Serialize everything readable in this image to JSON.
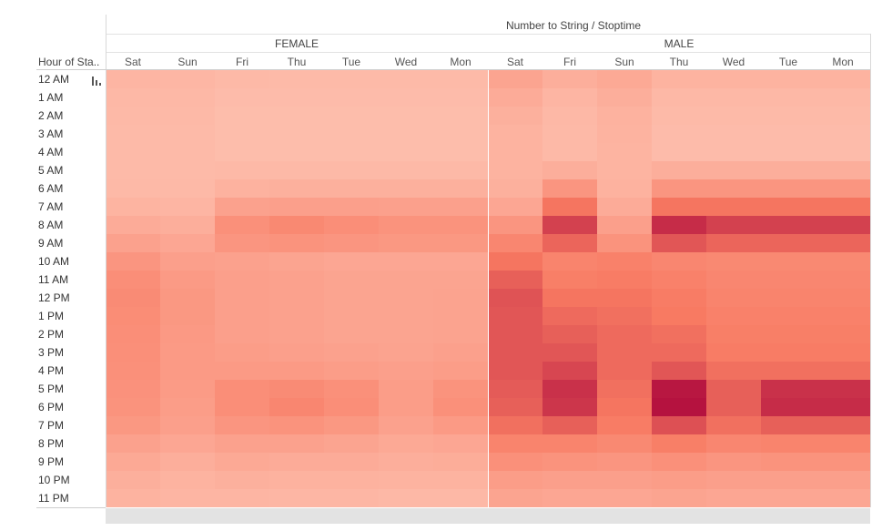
{
  "chart_data": {
    "type": "heatmap",
    "title": "Number to String / Stoptime",
    "row_header": "Hour of Sta..",
    "rows": [
      "12 AM",
      "1 AM",
      "2 AM",
      "3 AM",
      "4 AM",
      "5 AM",
      "6 AM",
      "7 AM",
      "8 AM",
      "9 AM",
      "10 AM",
      "11 AM",
      "12 PM",
      "1 PM",
      "2 PM",
      "3 PM",
      "4 PM",
      "5 PM",
      "6 PM",
      "7 PM",
      "8 PM",
      "9 PM",
      "10 PM",
      "11 PM"
    ],
    "groups": [
      {
        "name": "FEMALE",
        "columns": [
          "Sat",
          "Sun",
          "Fri",
          "Thu",
          "Tue",
          "Wed",
          "Mon"
        ],
        "values": [
          [
            12,
            11,
            9,
            8,
            8,
            8,
            8
          ],
          [
            10,
            10,
            7,
            7,
            7,
            7,
            7
          ],
          [
            9,
            9,
            6,
            6,
            6,
            6,
            6
          ],
          [
            8,
            8,
            6,
            6,
            6,
            6,
            6
          ],
          [
            8,
            8,
            6,
            6,
            6,
            6,
            6
          ],
          [
            8,
            8,
            9,
            9,
            9,
            9,
            9
          ],
          [
            9,
            9,
            15,
            16,
            16,
            16,
            16
          ],
          [
            13,
            12,
            28,
            30,
            30,
            29,
            29
          ],
          [
            20,
            18,
            42,
            48,
            44,
            40,
            40
          ],
          [
            28,
            24,
            38,
            40,
            38,
            36,
            36
          ],
          [
            38,
            30,
            28,
            26,
            24,
            24,
            24
          ],
          [
            44,
            34,
            30,
            28,
            26,
            26,
            26
          ],
          [
            46,
            36,
            30,
            28,
            26,
            26,
            27
          ],
          [
            45,
            36,
            30,
            28,
            26,
            26,
            27
          ],
          [
            44,
            35,
            30,
            28,
            26,
            26,
            27
          ],
          [
            43,
            34,
            32,
            30,
            28,
            27,
            29
          ],
          [
            42,
            34,
            34,
            34,
            32,
            30,
            32
          ],
          [
            41,
            33,
            44,
            46,
            42,
            32,
            40
          ],
          [
            40,
            32,
            44,
            50,
            44,
            32,
            42
          ],
          [
            36,
            30,
            38,
            40,
            36,
            28,
            34
          ],
          [
            28,
            24,
            28,
            28,
            26,
            22,
            24
          ],
          [
            22,
            18,
            22,
            20,
            20,
            18,
            19
          ],
          [
            17,
            14,
            16,
            15,
            15,
            14,
            14
          ],
          [
            14,
            12,
            12,
            11,
            11,
            10,
            10
          ]
        ]
      },
      {
        "name": "MALE",
        "columns": [
          "Sat",
          "Fri",
          "Sun",
          "Thu",
          "Wed",
          "Tue",
          "Mon"
        ],
        "values": [
          [
            26,
            18,
            22,
            14,
            14,
            14,
            14
          ],
          [
            20,
            12,
            18,
            10,
            10,
            10,
            10
          ],
          [
            16,
            10,
            15,
            8,
            8,
            8,
            8
          ],
          [
            14,
            9,
            14,
            7,
            7,
            7,
            7
          ],
          [
            14,
            9,
            13,
            7,
            7,
            7,
            7
          ],
          [
            14,
            18,
            13,
            18,
            18,
            18,
            18
          ],
          [
            16,
            38,
            15,
            38,
            38,
            38,
            38
          ],
          [
            24,
            62,
            20,
            62,
            62,
            62,
            62
          ],
          [
            38,
            82,
            30,
            90,
            82,
            82,
            82
          ],
          [
            50,
            68,
            40,
            74,
            68,
            68,
            68
          ],
          [
            62,
            52,
            54,
            50,
            48,
            48,
            48
          ],
          [
            70,
            56,
            58,
            54,
            50,
            50,
            50
          ],
          [
            75,
            62,
            62,
            58,
            52,
            52,
            52
          ],
          [
            74,
            66,
            64,
            60,
            54,
            54,
            54
          ],
          [
            74,
            70,
            66,
            64,
            56,
            56,
            56
          ],
          [
            74,
            74,
            66,
            66,
            58,
            58,
            58
          ],
          [
            74,
            80,
            66,
            74,
            64,
            64,
            64
          ],
          [
            72,
            88,
            64,
            98,
            70,
            88,
            88
          ],
          [
            70,
            86,
            62,
            100,
            70,
            90,
            90
          ],
          [
            64,
            70,
            58,
            76,
            64,
            70,
            70
          ],
          [
            52,
            52,
            48,
            56,
            50,
            52,
            52
          ],
          [
            42,
            40,
            38,
            42,
            38,
            40,
            40
          ],
          [
            32,
            30,
            30,
            32,
            30,
            30,
            30
          ],
          [
            26,
            24,
            24,
            26,
            24,
            24,
            24
          ]
        ]
      }
    ],
    "color_scale": {
      "low": "#fec4b3",
      "mid": "#f87a62",
      "high": "#b5123f"
    }
  }
}
